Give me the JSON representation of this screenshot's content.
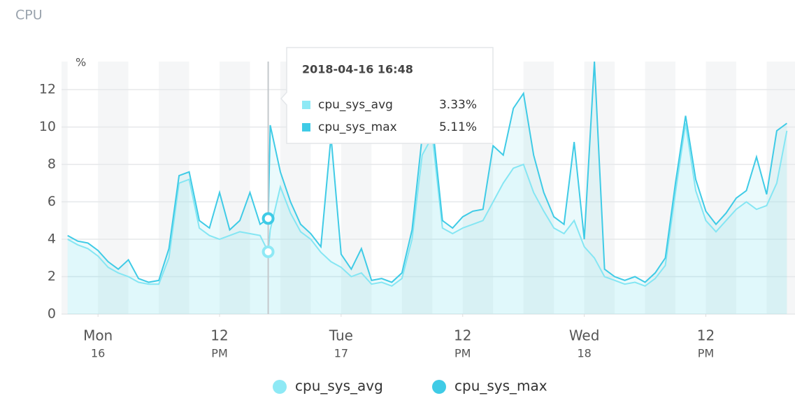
{
  "chart_data": {
    "type": "line",
    "title": "CPU",
    "y_label": "%",
    "x": [
      "2018-04-15 21:00",
      "2018-04-15 22:00",
      "2018-04-15 23:00",
      "2018-04-16 00:00",
      "2018-04-16 01:00",
      "2018-04-16 02:00",
      "2018-04-16 03:00",
      "2018-04-16 04:00",
      "2018-04-16 05:00",
      "2018-04-16 06:00",
      "2018-04-16 07:00",
      "2018-04-16 08:00",
      "2018-04-16 09:00",
      "2018-04-16 10:00",
      "2018-04-16 11:00",
      "2018-04-16 12:00",
      "2018-04-16 13:00",
      "2018-04-16 14:00",
      "2018-04-16 15:00",
      "2018-04-16 16:00",
      "2018-04-16 16:48",
      "2018-04-16 17:00",
      "2018-04-16 18:00",
      "2018-04-16 19:00",
      "2018-04-16 20:00",
      "2018-04-16 21:00",
      "2018-04-16 22:00",
      "2018-04-16 23:00",
      "2018-04-17 00:00",
      "2018-04-17 01:00",
      "2018-04-17 02:00",
      "2018-04-17 03:00",
      "2018-04-17 04:00",
      "2018-04-17 05:00",
      "2018-04-17 06:00",
      "2018-04-17 07:00",
      "2018-04-17 08:00",
      "2018-04-17 09:00",
      "2018-04-17 10:00",
      "2018-04-17 11:00",
      "2018-04-17 12:00",
      "2018-04-17 13:00",
      "2018-04-17 14:00",
      "2018-04-17 15:00",
      "2018-04-17 16:00",
      "2018-04-17 17:00",
      "2018-04-17 18:00",
      "2018-04-17 19:00",
      "2018-04-17 20:00",
      "2018-04-17 21:00",
      "2018-04-17 22:00",
      "2018-04-17 23:00",
      "2018-04-18 00:00",
      "2018-04-18 01:00",
      "2018-04-18 02:00",
      "2018-04-18 03:00",
      "2018-04-18 04:00",
      "2018-04-18 05:00",
      "2018-04-18 06:00",
      "2018-04-18 07:00",
      "2018-04-18 08:00",
      "2018-04-18 09:00",
      "2018-04-18 10:00",
      "2018-04-18 11:00",
      "2018-04-18 12:00",
      "2018-04-18 13:00",
      "2018-04-18 14:00",
      "2018-04-18 15:00",
      "2018-04-18 16:00",
      "2018-04-18 17:00",
      "2018-04-18 18:00",
      "2018-04-18 19:00",
      "2018-04-18 20:00"
    ],
    "series": [
      {
        "name": "cpu_sys_avg",
        "color": "#8ee9f5",
        "values": [
          4.0,
          3.7,
          3.5,
          3.1,
          2.5,
          2.2,
          2.0,
          1.7,
          1.6,
          1.6,
          3.0,
          7.0,
          7.2,
          4.6,
          4.2,
          4.0,
          4.2,
          4.4,
          4.3,
          4.2,
          3.33,
          4.5,
          6.8,
          5.4,
          4.4,
          4.0,
          3.3,
          2.8,
          2.5,
          2.0,
          2.2,
          1.6,
          1.7,
          1.5,
          1.9,
          4.0,
          8.5,
          9.5,
          4.6,
          4.3,
          4.6,
          4.8,
          5.0,
          6.0,
          7.0,
          7.8,
          8.0,
          6.5,
          5.5,
          4.6,
          4.3,
          5.0,
          3.6,
          3.0,
          2.0,
          1.8,
          1.6,
          1.7,
          1.5,
          1.9,
          2.6,
          6.5,
          10.2,
          6.6,
          5.0,
          4.4,
          5.0,
          5.6,
          6.0,
          5.6,
          5.8,
          7.0,
          9.8
        ],
        "value_labels": [
          null,
          null,
          null,
          null,
          null,
          null,
          null,
          null,
          null,
          null,
          null,
          null,
          null,
          null,
          null,
          null,
          null,
          null,
          null,
          null,
          "3.33%",
          null,
          null,
          null,
          null,
          null,
          null,
          null,
          null,
          null,
          null,
          null,
          null,
          null,
          null,
          null,
          null,
          null,
          null,
          null,
          null,
          null,
          null,
          null,
          null,
          null,
          null,
          null,
          null,
          null,
          null,
          null,
          null,
          null,
          null,
          null,
          null,
          null,
          null,
          null,
          null,
          null,
          null,
          null,
          null,
          null,
          null,
          null,
          null,
          null,
          null,
          null,
          null
        ]
      },
      {
        "name": "cpu_sys_max",
        "color": "#3fcbe6",
        "values": [
          4.2,
          3.9,
          3.8,
          3.4,
          2.8,
          2.4,
          2.9,
          1.9,
          1.7,
          1.8,
          3.5,
          7.4,
          7.6,
          5.0,
          4.6,
          6.5,
          4.5,
          5.0,
          6.5,
          4.8,
          5.11,
          10.1,
          7.6,
          6.0,
          4.8,
          4.3,
          3.6,
          9.5,
          3.2,
          2.4,
          3.5,
          1.8,
          1.9,
          1.7,
          2.2,
          4.5,
          9.5,
          10.2,
          5.0,
          4.6,
          5.2,
          5.5,
          5.6,
          9.0,
          8.5,
          11.0,
          11.8,
          8.5,
          6.5,
          5.2,
          4.8,
          9.2,
          4.0,
          13.5,
          2.4,
          2.0,
          1.8,
          2.0,
          1.7,
          2.2,
          3.0,
          7.0,
          10.6,
          7.2,
          5.5,
          4.8,
          5.4,
          6.2,
          6.6,
          8.4,
          6.4,
          9.8,
          10.2
        ],
        "value_labels": [
          null,
          null,
          null,
          null,
          null,
          null,
          null,
          null,
          null,
          null,
          null,
          null,
          null,
          null,
          null,
          null,
          null,
          null,
          null,
          null,
          "5.11%",
          null,
          null,
          null,
          null,
          null,
          null,
          null,
          null,
          null,
          null,
          null,
          null,
          null,
          null,
          null,
          null,
          null,
          null,
          null,
          null,
          null,
          null,
          null,
          null,
          null,
          null,
          null,
          null,
          null,
          null,
          null,
          null,
          null,
          null,
          null,
          null,
          null,
          null,
          null,
          null,
          null,
          null,
          null,
          null,
          null,
          null,
          null,
          null,
          null,
          null,
          null,
          null
        ]
      }
    ],
    "xlim": [
      "2018-04-15 20:24",
      "2018-04-18 20:48"
    ],
    "xticks": [
      {
        "value": "2018-04-16 00:00",
        "label": "Mon",
        "sublabel": "16"
      },
      {
        "value": "2018-04-16 12:00",
        "label": "12",
        "sublabel": "PM"
      },
      {
        "value": "2018-04-17 00:00",
        "label": "Tue",
        "sublabel": "17"
      },
      {
        "value": "2018-04-17 12:00",
        "label": "12",
        "sublabel": "PM"
      },
      {
        "value": "2018-04-18 00:00",
        "label": "Wed",
        "sublabel": "18"
      },
      {
        "value": "2018-04-18 12:00",
        "label": "12",
        "sublabel": "PM"
      }
    ],
    "ylim": [
      0,
      13.5
    ],
    "yticks": [
      0,
      2,
      4,
      6,
      8,
      10,
      12
    ],
    "grid": true,
    "legend": "bottom"
  }
}
